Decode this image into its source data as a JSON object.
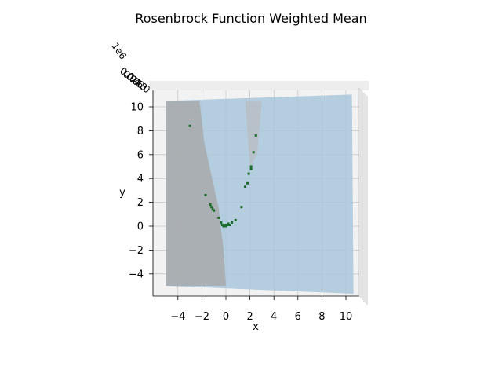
{
  "chart_data": {
    "type": "surface3d",
    "title": "Rosenbrock Function Weighted Mean",
    "xlabel": "x",
    "ylabel": "y",
    "zlabel": "",
    "xlim": [
      -6,
      11
    ],
    "ylim": [
      -6,
      11
    ],
    "x_ticks": [
      -4,
      -2,
      0,
      2,
      4,
      6,
      8,
      10
    ],
    "x_tick_labels": [
      "−4",
      "−2",
      "0",
      "2",
      "4",
      "6",
      "8",
      "10"
    ],
    "y_ticks": [
      -4,
      -2,
      0,
      2,
      4,
      6,
      8,
      10
    ],
    "y_tick_labels": [
      "−4",
      "−2",
      "0",
      "2",
      "4",
      "6",
      "8",
      "10"
    ],
    "z_tick_labels": [
      "1e6",
      "0.0",
      "0.2",
      "0.4",
      "0.6",
      "0.8",
      "1.0"
    ],
    "surface": {
      "x_range": [
        -5,
        10.5
      ],
      "y_range": [
        -5,
        10.5
      ],
      "color": "#a9c7dc",
      "shadow_color": "#a8a8a8"
    },
    "points": {
      "color": "#1a6a2a",
      "x": [
        -3.0,
        -1.7,
        -1.3,
        -1.2,
        -1.1,
        -1.0,
        -0.6,
        -0.4,
        -0.3,
        -0.2,
        -0.1,
        0.0,
        0.1,
        0.2,
        0.3,
        0.5,
        0.8,
        1.3,
        1.6,
        1.8,
        1.9,
        2.1,
        2.1,
        2.3,
        2.5
      ],
      "y": [
        8.4,
        2.6,
        1.8,
        1.6,
        1.4,
        1.3,
        0.7,
        0.3,
        0.1,
        0.0,
        0.1,
        0.0,
        0.1,
        0.2,
        0.1,
        0.3,
        0.5,
        1.6,
        3.3,
        3.6,
        4.4,
        4.8,
        5.0,
        6.2,
        7.6
      ]
    }
  }
}
